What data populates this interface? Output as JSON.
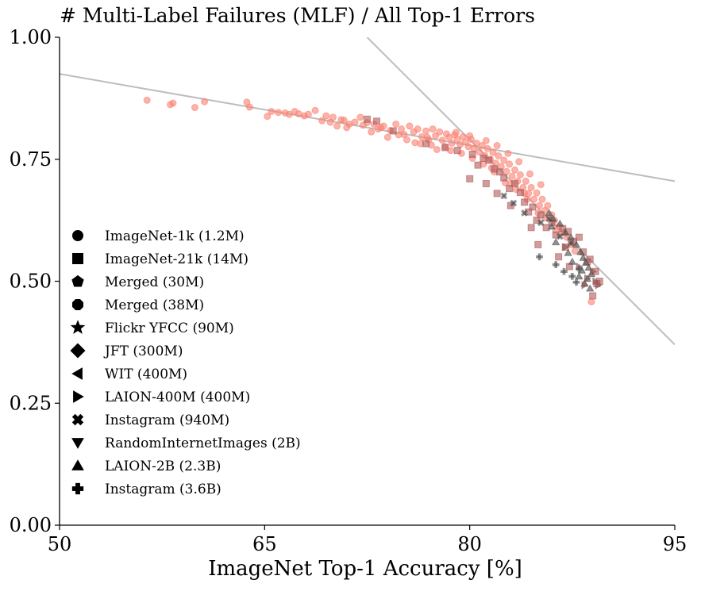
{
  "chart_data": {
    "type": "scatter",
    "title": "# Multi-Label Failures (MLF) / All Top-1 Errors",
    "xlabel": "ImageNet Top-1 Accuracy [%]",
    "ylabel": "",
    "xlim": [
      50,
      95
    ],
    "ylim": [
      0.0,
      1.0
    ],
    "xticks": [
      50,
      65,
      80,
      95
    ],
    "xtick_labels": [
      "50",
      "65",
      "80",
      "95"
    ],
    "yticks": [
      0.0,
      0.25,
      0.5,
      0.75,
      1.0
    ],
    "ytick_labels": [
      "0.00",
      "0.25",
      "0.50",
      "0.75",
      "1.00"
    ],
    "grid": false,
    "legend_position": "left-center",
    "colors": {
      "imagenet1k": "#fa8072",
      "other": "#b05a5a",
      "dark": "#4a4a4a",
      "trend": "#bdbdbd"
    },
    "trend_lines": [
      {
        "x": [
          50,
          95
        ],
        "y": [
          0.925,
          0.705
        ]
      },
      {
        "x": [
          72.5,
          95
        ],
        "y": [
          1.0,
          0.37
        ]
      }
    ],
    "legend": [
      {
        "label": "ImageNet-1k (1.2M)",
        "marker": "circle"
      },
      {
        "label": "ImageNet-21k (14M)",
        "marker": "square"
      },
      {
        "label": "Merged (30M)",
        "marker": "pentagon"
      },
      {
        "label": "Merged (38M)",
        "marker": "octagon"
      },
      {
        "label": "Flickr YFCC (90M)",
        "marker": "star"
      },
      {
        "label": "JFT (300M)",
        "marker": "diamond"
      },
      {
        "label": "WIT (400M)",
        "marker": "triangle-left"
      },
      {
        "label": "LAION-400M (400M)",
        "marker": "triangle-right"
      },
      {
        "label": "Instagram (940M)",
        "marker": "x"
      },
      {
        "label": "RandomInternetImages (2B)",
        "marker": "triangle-down"
      },
      {
        "label": "LAION-2B (2.3B)",
        "marker": "triangle-up"
      },
      {
        "label": "Instagram (3.6B)",
        "marker": "plus"
      }
    ],
    "series": [
      {
        "marker": "circle",
        "color": "#fa8072",
        "points": [
          [
            56.4,
            0.871
          ],
          [
            58.1,
            0.862
          ],
          [
            58.3,
            0.865
          ],
          [
            59.9,
            0.856
          ],
          [
            60.6,
            0.868
          ],
          [
            63.7,
            0.867
          ],
          [
            63.9,
            0.857
          ],
          [
            65.2,
            0.838
          ],
          [
            65.5,
            0.848
          ],
          [
            66.0,
            0.846
          ],
          [
            66.5,
            0.845
          ],
          [
            66.8,
            0.842
          ],
          [
            67.2,
            0.848
          ],
          [
            67.9,
            0.839
          ],
          [
            68.2,
            0.842
          ],
          [
            68.7,
            0.85
          ],
          [
            69.2,
            0.829
          ],
          [
            69.5,
            0.839
          ],
          [
            70.0,
            0.836
          ],
          [
            70.3,
            0.818
          ],
          [
            70.8,
            0.83
          ],
          [
            71.2,
            0.822
          ],
          [
            71.6,
            0.826
          ],
          [
            72.0,
            0.836
          ],
          [
            72.5,
            0.825
          ],
          [
            73.0,
            0.822
          ],
          [
            73.3,
            0.812
          ],
          [
            73.7,
            0.818
          ],
          [
            74.2,
            0.809
          ],
          [
            74.6,
            0.822
          ],
          [
            75.0,
            0.812
          ],
          [
            75.2,
            0.801
          ],
          [
            75.6,
            0.818
          ],
          [
            75.9,
            0.806
          ],
          [
            76.2,
            0.812
          ],
          [
            76.5,
            0.796
          ],
          [
            76.8,
            0.808
          ],
          [
            77.0,
            0.79
          ],
          [
            77.3,
            0.812
          ],
          [
            77.5,
            0.798
          ],
          [
            77.8,
            0.806
          ],
          [
            78.0,
            0.789
          ],
          [
            78.3,
            0.802
          ],
          [
            78.5,
            0.795
          ],
          [
            78.7,
            0.783
          ],
          [
            78.9,
            0.8
          ],
          [
            79.1,
            0.791
          ],
          [
            79.3,
            0.78
          ],
          [
            79.5,
            0.796
          ],
          [
            79.7,
            0.786
          ],
          [
            79.9,
            0.776
          ],
          [
            80.1,
            0.791
          ],
          [
            80.3,
            0.772
          ],
          [
            80.5,
            0.783
          ],
          [
            80.7,
            0.765
          ],
          [
            80.9,
            0.778
          ],
          [
            81.1,
            0.758
          ],
          [
            81.3,
            0.772
          ],
          [
            81.5,
            0.75
          ],
          [
            81.7,
            0.764
          ],
          [
            81.9,
            0.742
          ],
          [
            82.1,
            0.757
          ],
          [
            82.3,
            0.735
          ],
          [
            82.5,
            0.748
          ],
          [
            82.7,
            0.725
          ],
          [
            82.9,
            0.74
          ],
          [
            83.1,
            0.715
          ],
          [
            83.3,
            0.728
          ],
          [
            83.5,
            0.705
          ],
          [
            83.7,
            0.718
          ],
          [
            83.9,
            0.692
          ],
          [
            84.1,
            0.705
          ],
          [
            84.3,
            0.68
          ],
          [
            84.5,
            0.692
          ],
          [
            84.7,
            0.668
          ],
          [
            84.9,
            0.681
          ],
          [
            85.1,
            0.655
          ],
          [
            85.3,
            0.668
          ],
          [
            85.5,
            0.645
          ],
          [
            85.7,
            0.655
          ],
          [
            86.0,
            0.636
          ],
          [
            86.2,
            0.625
          ],
          [
            86.5,
            0.612
          ],
          [
            86.8,
            0.6
          ],
          [
            87.1,
            0.59
          ],
          [
            87.4,
            0.575
          ],
          [
            87.7,
            0.562
          ],
          [
            76.4,
            0.782
          ],
          [
            77.6,
            0.77
          ],
          [
            78.6,
            0.768
          ],
          [
            79.4,
            0.762
          ],
          [
            80.2,
            0.752
          ],
          [
            81.0,
            0.74
          ],
          [
            81.8,
            0.724
          ],
          [
            82.6,
            0.702
          ],
          [
            83.4,
            0.688
          ],
          [
            84.2,
            0.668
          ],
          [
            85.0,
            0.64
          ],
          [
            79.0,
            0.805
          ],
          [
            80.0,
            0.798
          ],
          [
            81.2,
            0.788
          ],
          [
            82.0,
            0.778
          ],
          [
            82.8,
            0.762
          ],
          [
            83.6,
            0.745
          ],
          [
            84.4,
            0.72
          ],
          [
            85.2,
            0.698
          ],
          [
            74.0,
            0.795
          ],
          [
            75.4,
            0.79
          ],
          [
            76.0,
            0.784
          ],
          [
            72.8,
            0.806
          ],
          [
            71.0,
            0.815
          ],
          [
            69.8,
            0.826
          ],
          [
            78.2,
            0.776
          ],
          [
            76.9,
            0.795
          ],
          [
            74.8,
            0.8
          ],
          [
            73.5,
            0.815
          ],
          [
            72.2,
            0.82
          ],
          [
            70.6,
            0.831
          ],
          [
            67.5,
            0.843
          ],
          [
            81.6,
            0.732
          ],
          [
            83.0,
            0.7
          ],
          [
            84.0,
            0.68
          ],
          [
            85.5,
            0.63
          ],
          [
            86.3,
            0.605
          ],
          [
            88.9,
            0.458
          ],
          [
            77.2,
            0.779
          ]
        ]
      },
      {
        "marker": "square",
        "color": "#b05a5a",
        "points": [
          [
            72.5,
            0.832
          ],
          [
            73.2,
            0.828
          ],
          [
            74.4,
            0.808
          ],
          [
            76.8,
            0.782
          ],
          [
            78.2,
            0.774
          ],
          [
            79.1,
            0.768
          ],
          [
            80.2,
            0.76
          ],
          [
            80.6,
            0.738
          ],
          [
            81.0,
            0.752
          ],
          [
            81.4,
            0.748
          ],
          [
            81.8,
            0.73
          ],
          [
            82.2,
            0.724
          ],
          [
            82.5,
            0.712
          ],
          [
            82.9,
            0.69
          ],
          [
            83.3,
            0.7
          ],
          [
            83.7,
            0.682
          ],
          [
            84.0,
            0.662
          ],
          [
            84.3,
            0.642
          ],
          [
            84.6,
            0.652
          ],
          [
            84.9,
            0.625
          ],
          [
            85.2,
            0.636
          ],
          [
            85.6,
            0.61
          ],
          [
            86.0,
            0.62
          ],
          [
            86.3,
            0.595
          ],
          [
            86.8,
            0.608
          ],
          [
            87.0,
            0.57
          ],
          [
            87.2,
            0.602
          ],
          [
            87.6,
            0.582
          ],
          [
            88.0,
            0.59
          ],
          [
            88.3,
            0.56
          ],
          [
            88.8,
            0.545
          ],
          [
            89.2,
            0.52
          ],
          [
            89.5,
            0.5
          ],
          [
            88.6,
            0.54
          ],
          [
            80.0,
            0.71
          ],
          [
            82.0,
            0.68
          ],
          [
            83.0,
            0.655
          ],
          [
            85.0,
            0.575
          ],
          [
            86.5,
            0.55
          ],
          [
            87.3,
            0.53
          ],
          [
            89.3,
            0.495
          ],
          [
            89.0,
            0.47
          ],
          [
            81.2,
            0.7
          ],
          [
            84.5,
            0.61
          ]
        ]
      },
      {
        "marker": "triangle-up",
        "color": "#4a4a4a",
        "points": [
          [
            85.8,
            0.64
          ],
          [
            86.1,
            0.628
          ],
          [
            86.6,
            0.618
          ],
          [
            87.0,
            0.6
          ],
          [
            87.4,
            0.59
          ],
          [
            87.8,
            0.575
          ],
          [
            88.1,
            0.56
          ],
          [
            88.3,
            0.548
          ],
          [
            88.5,
            0.538
          ],
          [
            88.7,
            0.528
          ],
          [
            88.9,
            0.515
          ],
          [
            88.2,
            0.522
          ],
          [
            88.6,
            0.505
          ],
          [
            88.8,
            0.485
          ],
          [
            86.3,
            0.58
          ],
          [
            87.5,
            0.54
          ],
          [
            88.0,
            0.51
          ],
          [
            87.2,
            0.558
          ],
          [
            86.0,
            0.612
          ],
          [
            88.4,
            0.495
          ]
        ]
      },
      {
        "marker": "triangle-right",
        "color": "#8a5050",
        "points": [
          [
            89.2,
            0.5
          ],
          [
            88.4,
            0.492
          ],
          [
            89.0,
            0.52
          ],
          [
            88.0,
            0.53
          ],
          [
            87.0,
            0.57
          ],
          [
            89.4,
            0.492
          ],
          [
            88.6,
            0.506
          ]
        ]
      },
      {
        "marker": "x",
        "color": "#4a4a4a",
        "points": [
          [
            82.5,
            0.675
          ],
          [
            83.2,
            0.66
          ],
          [
            84.0,
            0.64
          ],
          [
            85.2,
            0.62
          ],
          [
            85.8,
            0.628
          ],
          [
            87.4,
            0.578
          ],
          [
            86.6,
            0.592
          ]
        ]
      },
      {
        "marker": "plus",
        "color": "#4a4a4a",
        "points": [
          [
            85.1,
            0.55
          ],
          [
            86.3,
            0.534
          ],
          [
            86.9,
            0.52
          ],
          [
            87.5,
            0.51
          ],
          [
            88.0,
            0.525
          ],
          [
            87.8,
            0.498
          ]
        ]
      }
    ]
  }
}
